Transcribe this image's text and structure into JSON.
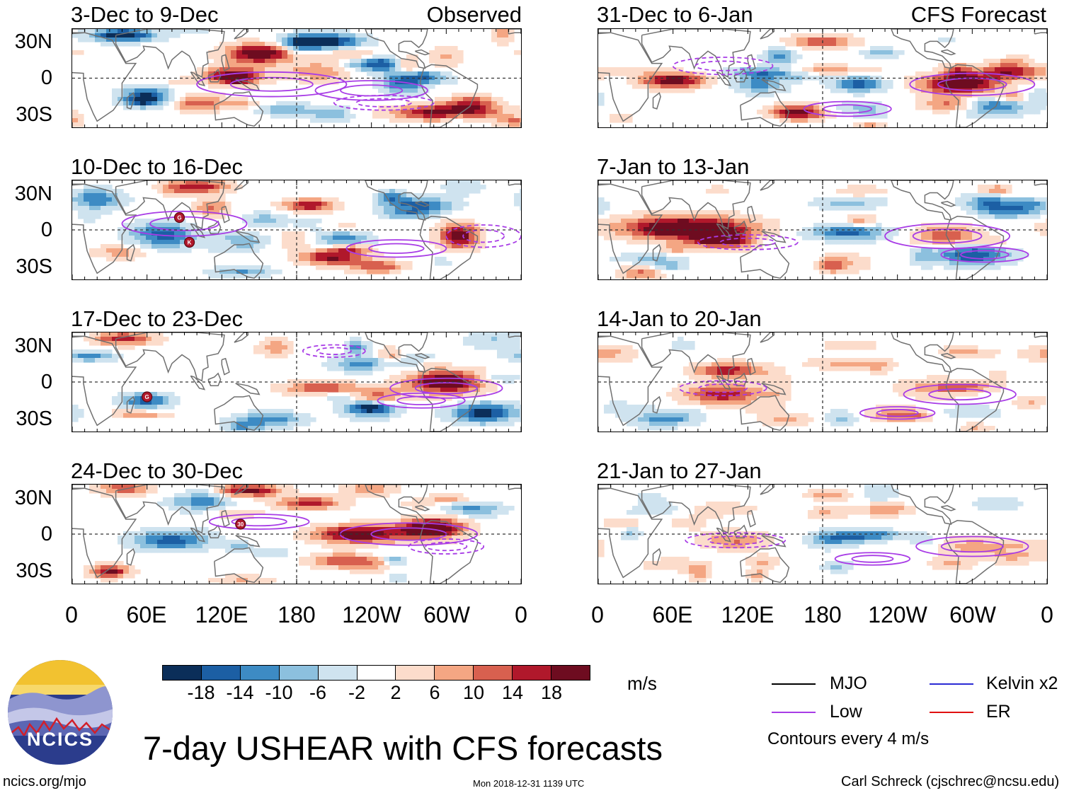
{
  "header": {
    "observed_label": "Observed",
    "forecast_label": "CFS Forecast"
  },
  "panels": {
    "left": [
      {
        "title": "3-Dec to 9-Dec",
        "storms": []
      },
      {
        "title": "10-Dec to 16-Dec",
        "storms": [
          {
            "label": "G",
            "lon": 86,
            "lat": 10
          },
          {
            "label": "K",
            "lon": 94,
            "lat": -10
          }
        ]
      },
      {
        "title": "17-Dec to 23-Dec",
        "storms": [
          {
            "label": "G",
            "lon": 60,
            "lat": -12
          }
        ]
      },
      {
        "title": "24-Dec to 30-Dec",
        "storms": [
          {
            "label": "30",
            "lon": 135,
            "lat": 8
          }
        ]
      }
    ],
    "right": [
      {
        "title": "31-Dec to 6-Jan"
      },
      {
        "title": "7-Jan to 13-Jan"
      },
      {
        "title": "14-Jan to 20-Jan"
      },
      {
        "title": "21-Jan to 27-Jan"
      }
    ]
  },
  "axes": {
    "lat_labels": [
      "30N",
      "0",
      "30S"
    ],
    "lon_labels": [
      "0",
      "60E",
      "120E",
      "180",
      "120W",
      "60W",
      "0"
    ]
  },
  "colorbar": {
    "colors": [
      "#0b2e59",
      "#1c5fa4",
      "#3d8bc4",
      "#8cc0de",
      "#cfe3ef",
      "#ffffff",
      "#fcdccb",
      "#f4a683",
      "#d8604f",
      "#b0182b",
      "#6e0c20"
    ],
    "tick_labels": [
      "-18",
      "-14",
      "-10",
      "-6",
      "-2",
      "2",
      "6",
      "10",
      "14",
      "18"
    ],
    "units": "m/s"
  },
  "legend": {
    "items": [
      {
        "label": "MJO",
        "color": "#000000"
      },
      {
        "label": "Kelvin x2",
        "color": "#2b2bd4"
      },
      {
        "label": "Low",
        "color": "#a83ce6"
      },
      {
        "label": "ER",
        "color": "#e01010"
      }
    ],
    "note": "Contours every 4 m/s"
  },
  "logo_text": "NCICS",
  "title": "7-day USHEAR with CFS forecasts",
  "footer": {
    "website": "ncics.org/mjo",
    "timestamp": "Mon 2018-12-31 1139 UTC",
    "credit": "Carl Schreck (cjschrec@ncsu.edu)"
  }
}
